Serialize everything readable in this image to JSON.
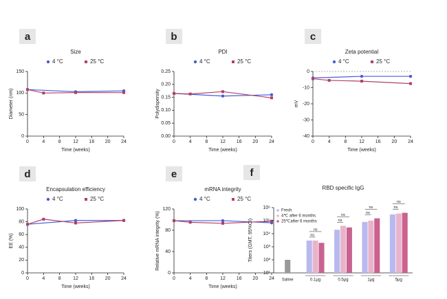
{
  "chart_data": [
    {
      "type": "line",
      "label": "a",
      "title": "Size",
      "y_label": "Diameter (nm)",
      "x_label": "Time (weeks)",
      "xlim": [
        0,
        24
      ],
      "xticks": [
        0,
        4,
        8,
        12,
        16,
        20,
        24
      ],
      "ylim": [
        0,
        150
      ],
      "yticks": [
        0,
        50,
        100,
        150
      ],
      "series": [
        {
          "name": "4 °C",
          "color": "#4a5bd4",
          "x": [
            0,
            12,
            24
          ],
          "values": [
            108,
            103,
            105
          ]
        },
        {
          "name": "25 °C",
          "color": "#b0406a",
          "x": [
            0,
            4,
            12,
            24
          ],
          "values": [
            108,
            100,
            101,
            101
          ]
        }
      ]
    },
    {
      "type": "line",
      "label": "b",
      "title": "PDI",
      "y_label": "Polydispersity",
      "x_label": "Time (weeks)",
      "xlim": [
        0,
        24
      ],
      "xticks": [
        0,
        4,
        8,
        12,
        16,
        20,
        24
      ],
      "ylim": [
        0,
        0.25
      ],
      "yticks": [
        {
          "value": 0,
          "label": "0.00"
        },
        {
          "value": 0.05,
          "label": "0.05"
        },
        {
          "value": 0.1,
          "label": "0.10"
        },
        {
          "value": 0.15,
          "label": "0.15"
        },
        {
          "value": 0.2,
          "label": "0.20"
        },
        {
          "value": 0.25,
          "label": "0.25"
        }
      ],
      "series": [
        {
          "name": "4 °C",
          "color": "#4a5bd4",
          "x": [
            0,
            12,
            24
          ],
          "values": [
            0.165,
            0.155,
            0.16
          ]
        },
        {
          "name": "25 °C",
          "color": "#b0406a",
          "x": [
            0,
            4,
            12,
            24
          ],
          "values": [
            0.165,
            0.163,
            0.172,
            0.148
          ]
        }
      ]
    },
    {
      "type": "line",
      "label": "c",
      "title": "Zeta potential",
      "y_label": "mV",
      "x_label": "Time (weeks)",
      "xlim": [
        0,
        24
      ],
      "xticks": [
        0,
        4,
        8,
        12,
        16,
        20,
        24
      ],
      "ylim": [
        -40,
        0
      ],
      "yticks": [
        -40,
        -30,
        -20,
        -10,
        0
      ],
      "zero_line": true,
      "series": [
        {
          "name": "4 °C",
          "color": "#4a5bd4",
          "x": [
            0,
            12,
            24
          ],
          "values": [
            -4,
            -3,
            -3
          ]
        },
        {
          "name": "25 °C",
          "color": "#b0406a",
          "x": [
            0,
            4,
            12,
            24
          ],
          "values": [
            -4.5,
            -5.5,
            -6,
            -7.5
          ]
        }
      ]
    },
    {
      "type": "line",
      "label": "d",
      "title": "Encapsulation efficiency",
      "y_label": "EE (%)",
      "x_label": "Time (weeks)",
      "xlim": [
        0,
        24
      ],
      "xticks": [
        0,
        4,
        8,
        12,
        16,
        20,
        24
      ],
      "ylim": [
        0,
        100
      ],
      "yticks": [
        0,
        20,
        40,
        60,
        80,
        100
      ],
      "series": [
        {
          "name": "4 °C",
          "color": "#4a5bd4",
          "x": [
            0,
            12,
            24
          ],
          "values": [
            76,
            82,
            82
          ]
        },
        {
          "name": "25 °C",
          "color": "#b0406a",
          "x": [
            0,
            4,
            12,
            24
          ],
          "values": [
            76,
            84,
            78,
            82
          ]
        }
      ]
    },
    {
      "type": "line",
      "label": "e",
      "title": "mRNA integrity",
      "y_label": "Relative mRNA integrity (%)",
      "x_label": "Time (weeks)",
      "xlim": [
        0,
        24
      ],
      "xticks": [
        0,
        4,
        8,
        12,
        16,
        20,
        24
      ],
      "ylim": [
        0,
        120
      ],
      "yticks": [
        0,
        40,
        80,
        120
      ],
      "series": [
        {
          "name": "4 °C",
          "color": "#4a5bd4",
          "x": [
            0,
            12,
            24
          ],
          "values": [
            98,
            98,
            94
          ]
        },
        {
          "name": "25 °C",
          "color": "#b0406a",
          "x": [
            0,
            4,
            12,
            24
          ],
          "values": [
            98,
            95,
            93,
            97
          ]
        }
      ]
    },
    {
      "type": "bar",
      "label": "f",
      "title": "RBD specific IgG",
      "y_label": "Titers (GMT, 95%CI)",
      "log_scale": true,
      "ylim": [
        10,
        1000000
      ],
      "yticks": [
        {
          "value": 10,
          "label": "10¹"
        },
        {
          "value": 100,
          "label": "10²"
        },
        {
          "value": 1000,
          "label": "10³"
        },
        {
          "value": 10000,
          "label": "10⁴"
        },
        {
          "value": 100000,
          "label": "10⁵"
        },
        {
          "value": 1000000,
          "label": "10⁶"
        }
      ],
      "categories": [
        "Saline",
        "0.1μg",
        "0.5μg",
        "1μg",
        "5μg"
      ],
      "series": [
        {
          "name": "Fresh",
          "color": "#b9b9ef",
          "values": [
            100,
            3000,
            20000,
            80000,
            300000
          ]
        },
        {
          "name": "4℃ after 6 months",
          "color": "#e8b4cc",
          "values": [
            null,
            3000,
            40000,
            100000,
            350000
          ]
        },
        {
          "name": "25℃after 6 months",
          "color": "#c9628f",
          "values": [
            null,
            2000,
            30000,
            150000,
            400000
          ]
        }
      ],
      "annotations": [
        "ns",
        "ns",
        "ns",
        "ns",
        "ns",
        "ns",
        "ns",
        "ns"
      ]
    }
  ]
}
